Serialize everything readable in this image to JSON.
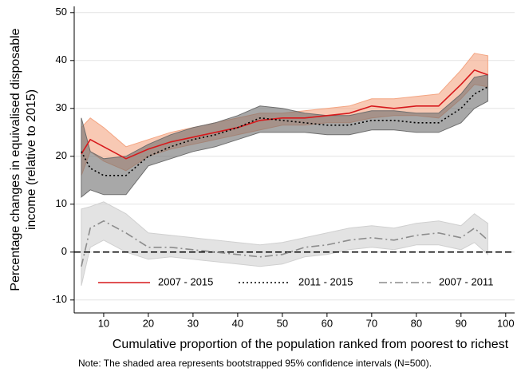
{
  "chart_data": {
    "type": "band-line",
    "y_label": [
      "Percentage changes in equivalised disposable",
      "income (relative to 2015)"
    ],
    "x_label": "Cumulative proportion of the population ranked from poorest to richest",
    "note": "Note: The shaded area represents bootstrapped 95% confidence intervals (N=500).",
    "x": [
      5,
      7,
      10,
      15,
      20,
      25,
      30,
      35,
      40,
      45,
      50,
      55,
      60,
      65,
      70,
      75,
      80,
      85,
      90,
      93,
      96
    ],
    "series": [
      {
        "name": "2007 - 2015",
        "color": "#d7191c",
        "band_color": "#f4a582",
        "dash": "solid",
        "values": [
          20.5,
          23.5,
          22,
          19.5,
          21.5,
          23,
          24,
          25,
          26,
          27.5,
          28,
          28,
          28.5,
          29,
          30.5,
          30,
          30.5,
          30.5,
          35,
          38,
          37
        ],
        "lower": [
          16,
          21,
          19,
          17,
          20,
          21.5,
          22.5,
          23.5,
          24.5,
          25.5,
          26.5,
          26.5,
          27,
          27,
          28,
          28.5,
          28.5,
          28,
          32,
          35,
          34.5
        ],
        "upper": [
          26,
          28,
          26,
          22,
          23.5,
          25,
          26,
          27,
          28,
          29,
          29,
          29.5,
          30,
          30.5,
          32,
          32,
          32.5,
          33,
          38,
          41.5,
          41
        ]
      },
      {
        "name": "2011 - 2015",
        "color": "#000000",
        "band_color": "#6e6e6e",
        "dash": "dotted",
        "values": [
          21,
          17.5,
          16,
          16,
          20,
          22,
          23.5,
          24.5,
          26,
          28,
          27.5,
          27,
          26.5,
          26.5,
          27.5,
          27.5,
          27,
          27,
          30,
          33,
          34.5
        ],
        "lower": [
          11.5,
          13,
          12,
          12,
          18,
          19.5,
          21,
          22,
          23.5,
          25,
          25,
          25,
          24.5,
          24.5,
          25.5,
          25.5,
          25,
          25,
          27,
          30,
          31.5
        ],
        "upper": [
          28,
          21,
          19.5,
          20,
          22.5,
          24.5,
          26,
          27,
          28.5,
          30.5,
          30,
          29,
          28.5,
          28.5,
          29.5,
          29.5,
          29,
          29,
          33,
          36.5,
          37
        ]
      },
      {
        "name": "2007 - 2011",
        "color": "#8c8c8c",
        "band_color": "#d0d0d0",
        "dash": "dashdot",
        "values": [
          -3,
          5,
          6.5,
          4,
          1,
          1,
          0.5,
          0,
          -0.5,
          -1,
          -0.5,
          1,
          1.5,
          2.5,
          3,
          2.5,
          3.5,
          4,
          3,
          5,
          2.5
        ],
        "lower": [
          -7,
          1,
          2.5,
          0,
          -1.5,
          -1,
          -1.5,
          -2,
          -2.5,
          -3,
          -2.5,
          -1,
          -0.5,
          0.5,
          1,
          0.5,
          1.5,
          1.5,
          0.5,
          2,
          -0.5
        ],
        "upper": [
          9,
          9.5,
          10.5,
          8,
          4,
          3.5,
          3,
          2.5,
          2,
          1.5,
          2,
          3,
          4,
          5,
          5.5,
          5,
          6,
          6.5,
          5.5,
          8,
          6
        ]
      }
    ],
    "reference_line": 0,
    "xlim": [
      3.4,
      102
    ],
    "ylim": [
      -12.7,
      51.3
    ],
    "xticks": [
      10,
      20,
      30,
      40,
      50,
      60,
      70,
      80,
      90,
      100
    ],
    "yticks": [
      -10,
      0,
      10,
      20,
      30,
      40,
      50
    ],
    "grid": true,
    "legend": "bottom"
  }
}
